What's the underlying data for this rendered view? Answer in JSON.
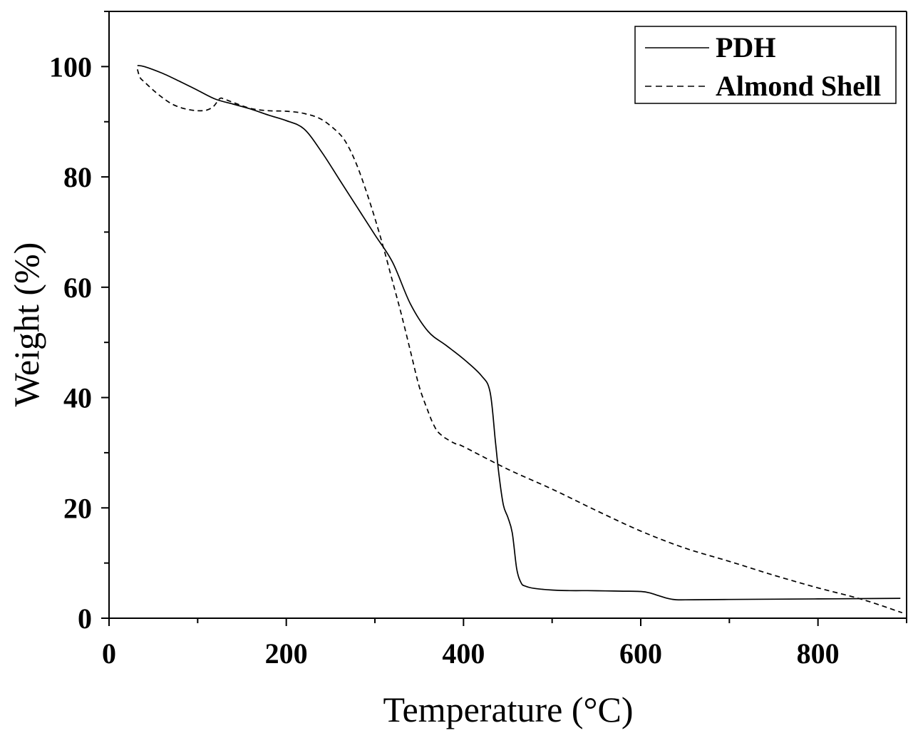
{
  "chart_data": {
    "type": "line",
    "title": "",
    "xlabel": "Temperature (°C)",
    "ylabel": "Weight (%)",
    "xlim": [
      0,
      900
    ],
    "ylim": [
      0,
      110
    ],
    "xticks": [
      0,
      200,
      400,
      600,
      800
    ],
    "yticks": [
      0,
      20,
      40,
      60,
      80,
      100
    ],
    "x_minor_step": 100,
    "y_minor_step": 10,
    "grid": false,
    "legend_position": "top-right",
    "series": [
      {
        "name": "PDH",
        "style": "solid",
        "color": "#000000",
        "x": [
          32,
          40,
          60,
          80,
          100,
          120,
          140,
          160,
          180,
          200,
          220,
          240,
          260,
          280,
          300,
          320,
          340,
          360,
          380,
          400,
          420,
          430,
          436,
          440,
          445,
          450,
          455,
          460,
          465,
          470,
          480,
          500,
          520,
          540,
          560,
          580,
          600,
          610,
          620,
          630,
          640,
          660,
          700,
          750,
          800,
          850,
          893
        ],
        "y": [
          100.2,
          100,
          98.8,
          97.3,
          95.7,
          94.1,
          93.2,
          92.3,
          91.2,
          90.2,
          88.7,
          84.5,
          79.5,
          74.5,
          69.5,
          64.5,
          57,
          52,
          49.5,
          47,
          44,
          41,
          32,
          26,
          20.5,
          18.3,
          15.5,
          9,
          6.4,
          5.8,
          5.4,
          5.1,
          5.0,
          5.0,
          4.95,
          4.9,
          4.85,
          4.6,
          4.1,
          3.6,
          3.35,
          3.35,
          3.4,
          3.45,
          3.5,
          3.55,
          3.6
        ]
      },
      {
        "name": "Almond Shell",
        "style": "dashed",
        "color": "#000000",
        "x": [
          32,
          35,
          40,
          50,
          60,
          70,
          80,
          90,
          100,
          110,
          118,
          125,
          130,
          140,
          160,
          180,
          200,
          220,
          240,
          260,
          270,
          280,
          290,
          300,
          310,
          320,
          330,
          340,
          350,
          360,
          365,
          370,
          375,
          380,
          390,
          400,
          450,
          500,
          550,
          600,
          650,
          700,
          750,
          800,
          850,
          895
        ],
        "y": [
          99.5,
          98,
          97.2,
          95.7,
          94.4,
          93.3,
          92.6,
          92.2,
          92.0,
          92.1,
          92.8,
          94.2,
          94.1,
          93.5,
          92.4,
          92.0,
          91.9,
          91.5,
          90.4,
          87.8,
          85.5,
          82,
          77.5,
          72.5,
          67,
          61,
          55,
          48.5,
          42,
          37.5,
          35.5,
          34,
          33.2,
          32.6,
          31.7,
          31.1,
          27,
          23.4,
          19.5,
          15.8,
          12.7,
          10.3,
          7.8,
          5.5,
          3.4,
          1
        ]
      }
    ]
  }
}
